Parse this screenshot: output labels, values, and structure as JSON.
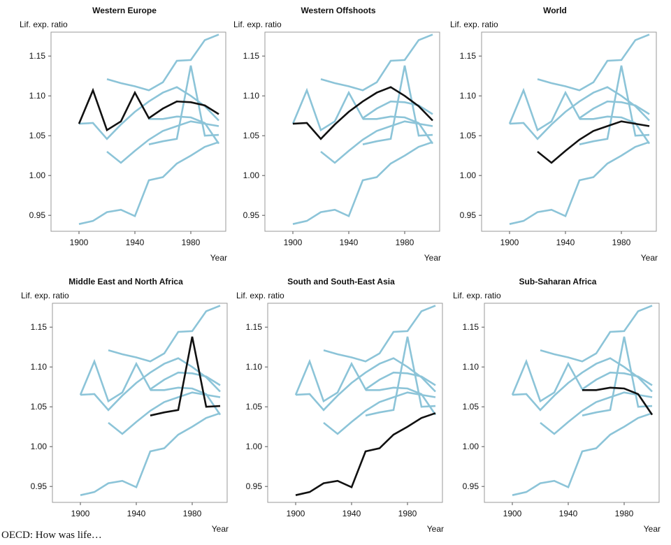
{
  "source_note": "OECD: How was life…",
  "colors": {
    "background_series": "#8cc4d8",
    "highlight_series": "#111111",
    "plot_border": "#999999"
  },
  "chart_data": [
    {
      "type": "line",
      "title": "Western Europe",
      "ylabel": "Lif. exp. ratio",
      "xlabel": "Year",
      "xlim": [
        1880,
        2005
      ],
      "ylim": [
        0.93,
        1.18
      ],
      "xticks": [
        1900,
        1940,
        1980
      ],
      "yticks": [
        0.95,
        1.0,
        1.05,
        1.1,
        1.15
      ],
      "ytick_labels": [
        "0.95",
        "1.00",
        "1.05",
        "1.10",
        "1.15"
      ],
      "highlight": 0
    },
    {
      "type": "line",
      "title": "Western Offshoots",
      "ylabel": "Lif. exp. ratio",
      "xlabel": "Year",
      "xlim": [
        1880,
        2005
      ],
      "ylim": [
        0.93,
        1.18
      ],
      "xticks": [
        1900,
        1940,
        1980
      ],
      "yticks": [
        0.95,
        1.0,
        1.05,
        1.1,
        1.15
      ],
      "ytick_labels": [
        "0.95",
        "1.00",
        "1.05",
        "1.10",
        "1.15"
      ],
      "highlight": 1
    },
    {
      "type": "line",
      "title": "World",
      "ylabel": "Lif. exp. ratio",
      "xlabel": "Year",
      "xlim": [
        1880,
        2005
      ],
      "ylim": [
        0.93,
        1.18
      ],
      "xticks": [
        1900,
        1940,
        1980
      ],
      "yticks": [
        0.95,
        1.0,
        1.05,
        1.1,
        1.15
      ],
      "ytick_labels": [
        "0.95",
        "1.00",
        "1.05",
        "1.10",
        "1.15"
      ],
      "highlight": 2
    },
    {
      "type": "line",
      "title": "Middle East and North Africa",
      "ylabel": "Lif. exp. ratio",
      "xlabel": "Year",
      "xlim": [
        1880,
        2005
      ],
      "ylim": [
        0.93,
        1.18
      ],
      "xticks": [
        1900,
        1940,
        1980
      ],
      "yticks": [
        0.95,
        1.0,
        1.05,
        1.1,
        1.15
      ],
      "ytick_labels": [
        "0.95",
        "1.00",
        "1.05",
        "1.10",
        "1.15"
      ],
      "highlight": 3
    },
    {
      "type": "line",
      "title": "South and South-East Asia",
      "ylabel": "Lif. exp. ratio",
      "xlabel": "Year",
      "xlim": [
        1880,
        2005
      ],
      "ylim": [
        0.93,
        1.18
      ],
      "xticks": [
        1900,
        1940,
        1980
      ],
      "yticks": [
        0.95,
        1.0,
        1.05,
        1.1,
        1.15
      ],
      "ytick_labels": [
        "0.95",
        "1.00",
        "1.05",
        "1.10",
        "1.15"
      ],
      "highlight": 4
    },
    {
      "type": "line",
      "title": "Sub-Saharan Africa",
      "ylabel": "Lif. exp. ratio",
      "xlabel": "Year",
      "xlim": [
        1880,
        2005
      ],
      "ylim": [
        0.93,
        1.18
      ],
      "xticks": [
        1900,
        1940,
        1980
      ],
      "yticks": [
        0.95,
        1.0,
        1.05,
        1.1,
        1.15
      ],
      "ytick_labels": [
        "0.95",
        "1.00",
        "1.05",
        "1.10",
        "1.15"
      ],
      "highlight": 5
    }
  ],
  "series_lines": [
    {
      "x": [
        1900,
        1910,
        1920,
        1930,
        1940,
        1950,
        1960,
        1970,
        1980,
        1990,
        2000
      ],
      "y": [
        1.065,
        1.107,
        1.057,
        1.068,
        1.104,
        1.072,
        1.084,
        1.093,
        1.092,
        1.088,
        1.077
      ]
    },
    {
      "x": [
        1900,
        1910,
        1920,
        1930,
        1940,
        1950,
        1960,
        1970,
        1980,
        1990,
        2000
      ],
      "y": [
        1.065,
        1.066,
        1.046,
        1.064,
        1.08,
        1.093,
        1.104,
        1.111,
        1.1,
        1.087,
        1.069
      ]
    },
    {
      "x": [
        1920,
        1930,
        1940,
        1950,
        1960,
        1970,
        1980,
        1990,
        2000
      ],
      "y": [
        1.03,
        1.016,
        1.031,
        1.045,
        1.056,
        1.062,
        1.068,
        1.065,
        1.062
      ]
    },
    {
      "x": [
        1950,
        1960,
        1970,
        1980,
        1990,
        2000
      ],
      "y": [
        1.039,
        1.043,
        1.046,
        1.138,
        1.05,
        1.051
      ]
    },
    {
      "x": [
        1900,
        1910,
        1920,
        1930,
        1940,
        1950,
        1960,
        1970,
        1980,
        1990,
        2000
      ],
      "y": [
        0.939,
        0.943,
        0.954,
        0.957,
        0.949,
        0.994,
        0.998,
        1.015,
        1.025,
        1.036,
        1.042
      ]
    },
    {
      "x": [
        1950,
        1960,
        1970,
        1980,
        1990,
        2000
      ],
      "y": [
        1.071,
        1.071,
        1.074,
        1.073,
        1.066,
        1.04
      ]
    },
    {
      "x": [
        1920,
        1930,
        1940,
        1950,
        1960,
        1970,
        1980,
        1990,
        2000
      ],
      "y": [
        1.121,
        1.116,
        1.112,
        1.107,
        1.117,
        1.144,
        1.145,
        1.17,
        1.177
      ]
    }
  ]
}
